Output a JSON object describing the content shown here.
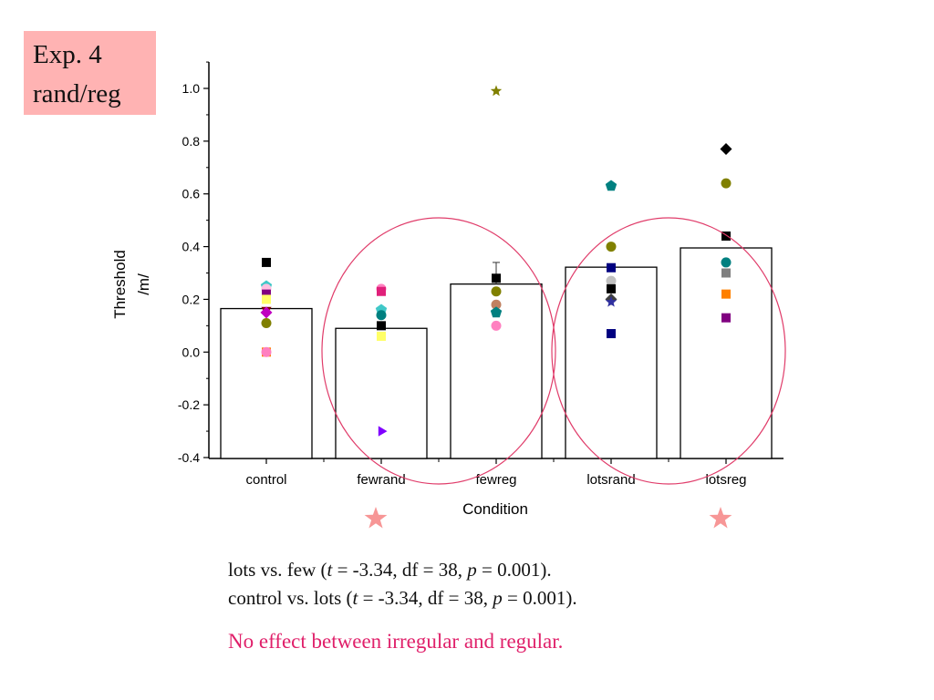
{
  "slide_label": {
    "line1": "Exp. 4",
    "line2": "rand/reg"
  },
  "chart_data": {
    "type": "bar",
    "xlabel": "Condition",
    "ylabel_line1": "Threshold",
    "ylabel_line2": "/m/",
    "ylim": [
      -0.4,
      1.1
    ],
    "yticks": [
      "-0.4",
      "-0.2",
      "0.0",
      "0.2",
      "0.4",
      "0.6",
      "0.8",
      "1.0"
    ],
    "categories": [
      "control",
      "fewrand",
      "fewreg",
      "lotsrand",
      "lotsreg"
    ],
    "values": [
      0.165,
      0.09,
      0.258,
      0.322,
      0.395
    ],
    "error_upper": [
      null,
      null,
      0.34,
      null,
      null
    ],
    "individual_points": [
      [
        {
          "y": 0.34,
          "marker": "square",
          "color": "#000000"
        },
        {
          "y": 0.25,
          "marker": "pentagon",
          "color": "#40c8c8"
        },
        {
          "y": 0.24,
          "marker": "circle",
          "color": "#ffc0e0"
        },
        {
          "y": 0.22,
          "marker": "square",
          "color": "#800080"
        },
        {
          "y": 0.2,
          "marker": "square",
          "color": "#ffff66"
        },
        {
          "y": 0.16,
          "marker": "triangle-down",
          "color": "#800000"
        },
        {
          "y": 0.15,
          "marker": "diamond",
          "color": "#c000c0"
        },
        {
          "y": 0.11,
          "marker": "circle",
          "color": "#808000"
        },
        {
          "y": 0.0,
          "marker": "square",
          "color": "#ff8000"
        },
        {
          "y": 0.0,
          "marker": "circle",
          "color": "#ff80c0"
        }
      ],
      [
        {
          "y": 0.24,
          "marker": "circle",
          "color": "#ff80c0"
        },
        {
          "y": 0.23,
          "marker": "square",
          "color": "#e0207a"
        },
        {
          "y": 0.16,
          "marker": "pentagon",
          "color": "#40c8c8"
        },
        {
          "y": 0.14,
          "marker": "circle",
          "color": "#008080"
        },
        {
          "y": 0.1,
          "marker": "square",
          "color": "#000000"
        },
        {
          "y": 0.06,
          "marker": "square",
          "color": "#ffff66"
        },
        {
          "y": -0.3,
          "marker": "triangle-right",
          "color": "#8000ff"
        }
      ],
      [
        {
          "y": 0.99,
          "marker": "star",
          "color": "#808000"
        },
        {
          "y": 0.28,
          "marker": "square",
          "color": "#000000"
        },
        {
          "y": 0.23,
          "marker": "circle",
          "color": "#808000"
        },
        {
          "y": 0.18,
          "marker": "circle",
          "color": "#c08060"
        },
        {
          "y": 0.15,
          "marker": "pentagon",
          "color": "#008080"
        },
        {
          "y": 0.1,
          "marker": "circle",
          "color": "#ff80c0"
        }
      ],
      [
        {
          "y": 0.63,
          "marker": "pentagon",
          "color": "#008080"
        },
        {
          "y": 0.4,
          "marker": "circle",
          "color": "#808000"
        },
        {
          "y": 0.32,
          "marker": "square",
          "color": "#000080"
        },
        {
          "y": 0.27,
          "marker": "circle",
          "color": "#c0c0c0"
        },
        {
          "y": 0.24,
          "marker": "square",
          "color": "#000000"
        },
        {
          "y": 0.2,
          "marker": "diamond",
          "color": "#404040"
        },
        {
          "y": 0.19,
          "marker": "star",
          "color": "#3030a0"
        },
        {
          "y": 0.07,
          "marker": "square",
          "color": "#000080"
        }
      ],
      [
        {
          "y": 0.77,
          "marker": "diamond",
          "color": "#000000"
        },
        {
          "y": 0.64,
          "marker": "circle",
          "color": "#808000"
        },
        {
          "y": 0.44,
          "marker": "square",
          "color": "#000000"
        },
        {
          "y": 0.34,
          "marker": "circle",
          "color": "#008080"
        },
        {
          "y": 0.3,
          "marker": "square",
          "color": "#808080"
        },
        {
          "y": 0.22,
          "marker": "square",
          "color": "#ff8000"
        },
        {
          "y": 0.13,
          "marker": "square",
          "color": "#800080"
        }
      ]
    ],
    "highlight_circles": [
      "fewrand-fewreg",
      "lotsrand-lotsreg"
    ],
    "significance_stars": [
      "fewrand",
      "lotsreg"
    ],
    "grid": false,
    "legend": "none"
  },
  "colors": {
    "highlight": "#e03c6a",
    "star": "#f79696",
    "label_box": "#ffb3b3",
    "conclusion": "#e0206a"
  },
  "stats": {
    "line1_prefix": "lots vs. few (",
    "line2_prefix": "control vs. lots (",
    "t_label": "t",
    "t_value": " = -3.34, df = 38, ",
    "p_label": "p",
    "p_value": " = 0.001)."
  },
  "conclusion": "No effect between irregular and regular."
}
